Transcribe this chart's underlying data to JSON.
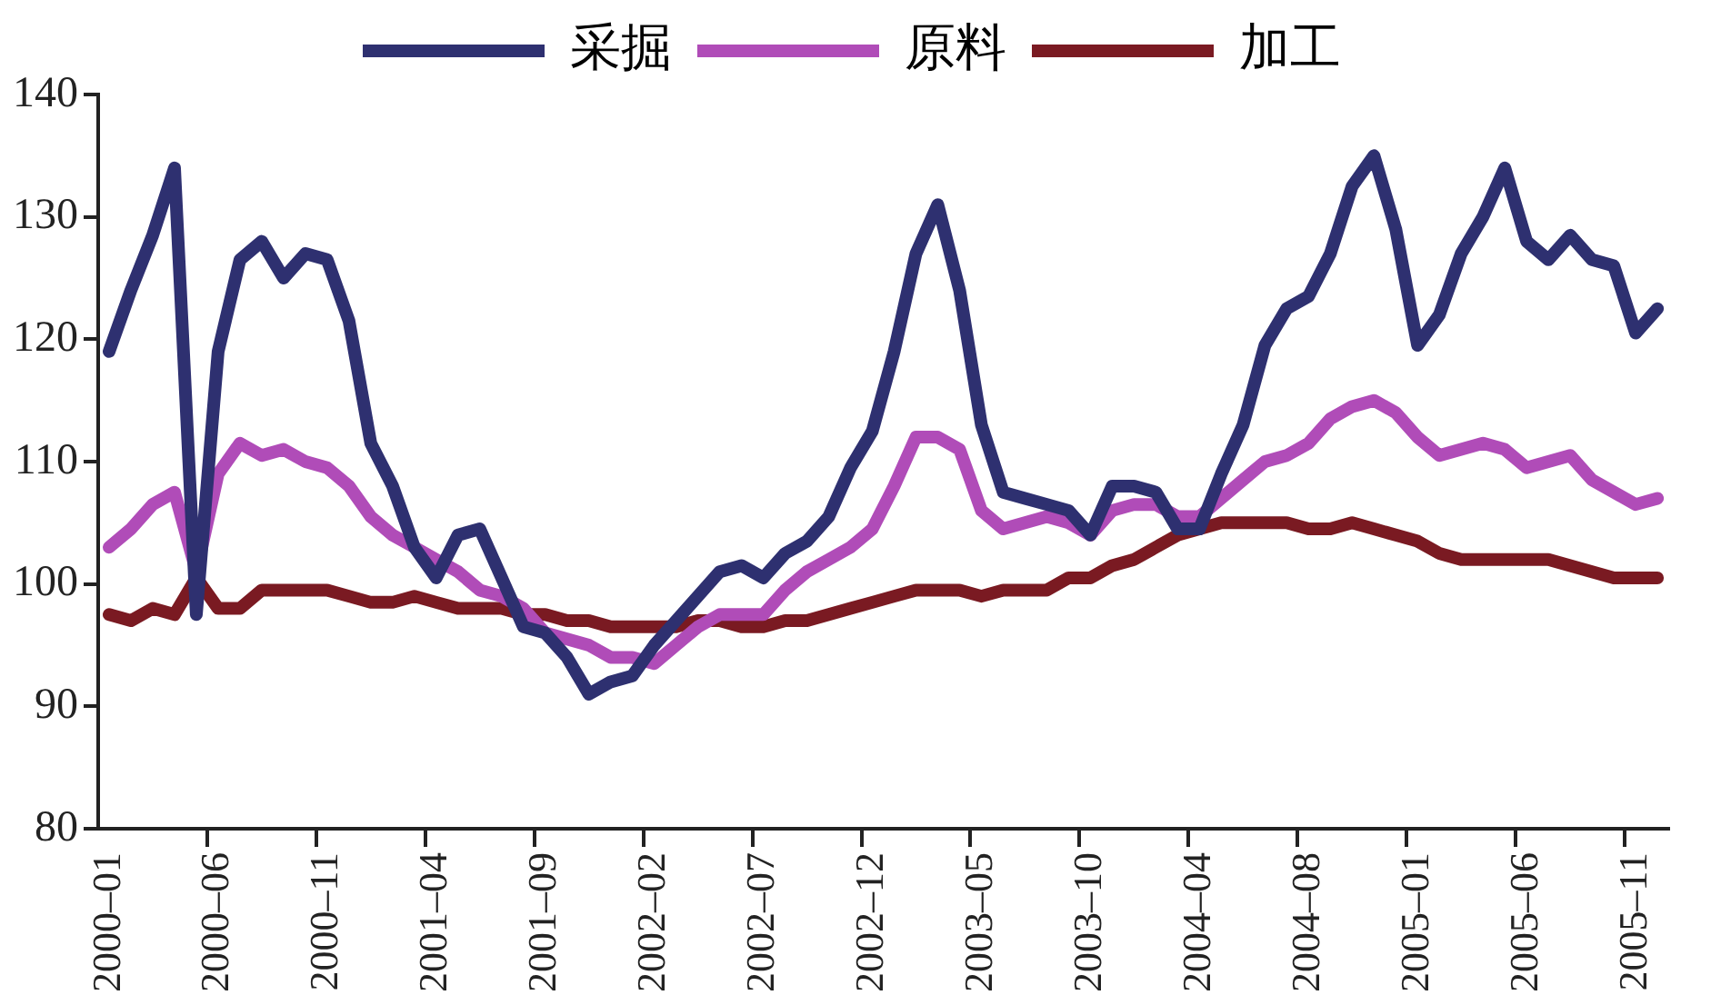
{
  "chart_data": {
    "type": "line",
    "categories": [
      "2000–01",
      null,
      null,
      null,
      null,
      "2000–06",
      null,
      null,
      null,
      null,
      "2000–11",
      null,
      null,
      null,
      null,
      "2001–04",
      null,
      null,
      null,
      null,
      "2001–09",
      null,
      null,
      null,
      null,
      "2002–02",
      null,
      null,
      null,
      null,
      "2002–07",
      null,
      null,
      null,
      null,
      "2002–12",
      null,
      null,
      null,
      null,
      "2003–05",
      null,
      null,
      null,
      null,
      "2003–10",
      null,
      null,
      null,
      null,
      "2004–04",
      null,
      null,
      null,
      null,
      "2004–08",
      null,
      null,
      null,
      null,
      "2005–01",
      null,
      null,
      null,
      null,
      "2005–06",
      null,
      null,
      null,
      null,
      "2005–11",
      null
    ],
    "series": [
      {
        "name": "采掘",
        "color": "#2e3070",
        "values": [
          119,
          124,
          128.5,
          134,
          97.5,
          119,
          126.5,
          128,
          125,
          127,
          126.5,
          121.5,
          111.5,
          108,
          103,
          100.5,
          104,
          104.5,
          100.5,
          96.5,
          96,
          94,
          91,
          92,
          92.5,
          95,
          97,
          99,
          101,
          101.5,
          100.5,
          102.5,
          103.5,
          105.5,
          109.5,
          112.5,
          119,
          127,
          131,
          124,
          113,
          107.5,
          107,
          106.5,
          106,
          104,
          108,
          108,
          107.5,
          104.5,
          104.5,
          109,
          113,
          119.5,
          122.5,
          123.5,
          127,
          132.5,
          135,
          129,
          119.5,
          122,
          127,
          130,
          134,
          128,
          126.5,
          128.5,
          126.5,
          126,
          120.5,
          122.5
        ]
      },
      {
        "name": "原料",
        "color": "#b04cb8",
        "values": [
          103,
          104.5,
          106.5,
          107.5,
          101,
          109,
          111.5,
          110.5,
          111,
          110,
          109.5,
          108,
          105.5,
          104,
          103,
          102,
          101,
          99.5,
          99,
          98,
          96,
          95.5,
          95,
          94,
          94,
          93.5,
          95,
          96.5,
          97.5,
          97.5,
          97.5,
          99.5,
          101,
          102,
          103,
          104.5,
          108,
          112,
          112,
          111,
          106,
          104.5,
          105,
          105.5,
          105,
          104,
          106,
          106.5,
          106.5,
          105.5,
          105.5,
          107,
          108.5,
          110,
          110.5,
          111.5,
          113.5,
          114.5,
          115,
          114,
          112,
          110.5,
          111,
          111.5,
          111,
          109.5,
          110,
          110.5,
          108.5,
          107.5,
          106.5,
          107
        ]
      },
      {
        "name": "加工",
        "color": "#7a1a22",
        "values": [
          97.5,
          97,
          98,
          97.5,
          100.5,
          98,
          98,
          99.5,
          99.5,
          99.5,
          99.5,
          99,
          98.5,
          98.5,
          99,
          98.5,
          98,
          98,
          98,
          97.5,
          97.5,
          97,
          97,
          96.5,
          96.5,
          96.5,
          96.5,
          97,
          97,
          96.5,
          96.5,
          97,
          97,
          97.5,
          98,
          98.5,
          99,
          99.5,
          99.5,
          99.5,
          99,
          99.5,
          99.5,
          99.5,
          100.5,
          100.5,
          101.5,
          102,
          103,
          104,
          104.5,
          105,
          105,
          105,
          105,
          104.5,
          104.5,
          105,
          104.5,
          104,
          103.5,
          102.5,
          102,
          102,
          102,
          102,
          102,
          101.5,
          101,
          100.5,
          100.5,
          100.5
        ]
      }
    ],
    "ylim": [
      80,
      140
    ],
    "yticks": [
      80,
      90,
      100,
      110,
      120,
      130,
      140
    ],
    "grid": false,
    "legend": "top",
    "marker": "none",
    "line_style": "solid"
  }
}
